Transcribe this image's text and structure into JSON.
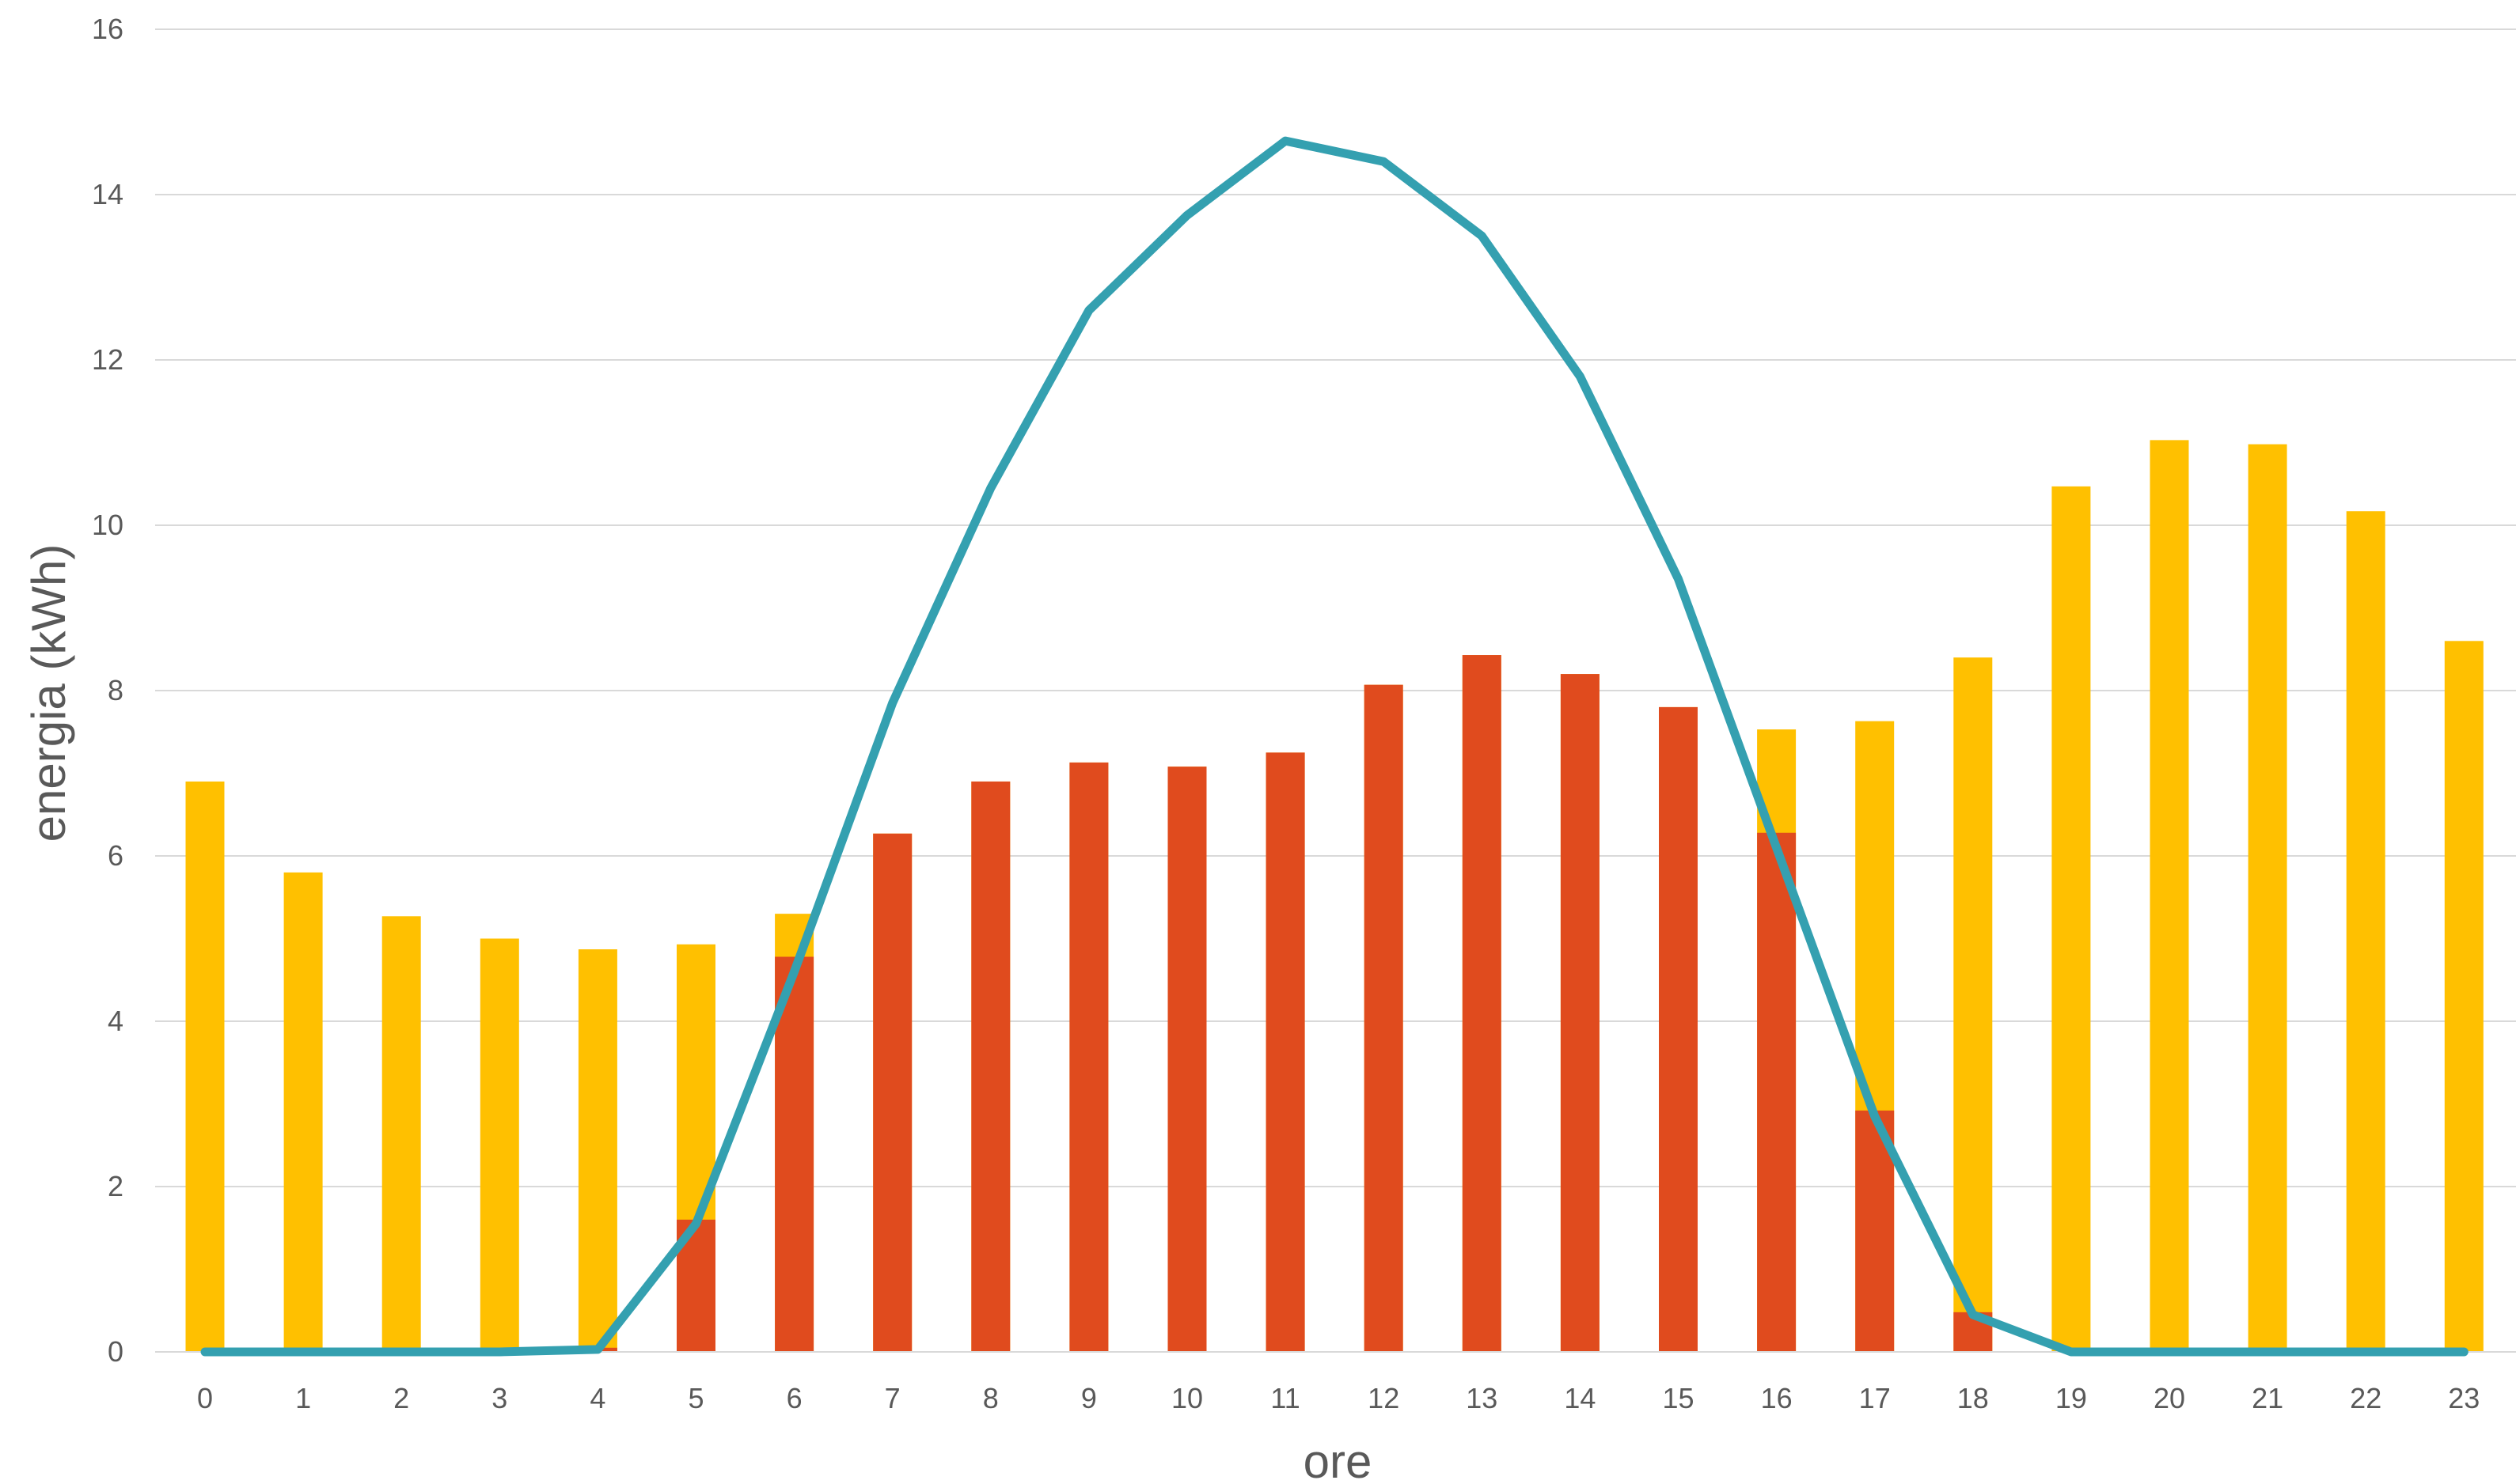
{
  "chart_data": {
    "type": "bar",
    "xlabel": "ore",
    "ylabel": "energia (kWh)",
    "ylim": [
      0,
      16
    ],
    "yticks": [
      0,
      2,
      4,
      6,
      8,
      10,
      12,
      14,
      16
    ],
    "grid": true,
    "legend": "none",
    "categories": [
      "0",
      "1",
      "2",
      "3",
      "4",
      "5",
      "6",
      "7",
      "8",
      "9",
      "10",
      "11",
      "12",
      "13",
      "14",
      "15",
      "16",
      "17",
      "18",
      "19",
      "20",
      "21",
      "22",
      "23"
    ],
    "series": [
      {
        "kind": "bar-total",
        "color": "#FFC000",
        "values": [
          6.9,
          5.8,
          5.27,
          5.0,
          4.87,
          4.93,
          5.3,
          6.27,
          6.9,
          7.13,
          7.08,
          7.25,
          8.07,
          8.43,
          8.2,
          7.8,
          7.53,
          7.63,
          8.4,
          10.47,
          11.03,
          10.98,
          10.17,
          8.6
        ]
      },
      {
        "kind": "bar-overlay",
        "color": "#E04B1E",
        "values": [
          0,
          0,
          0,
          0,
          0.05,
          1.6,
          4.78,
          6.27,
          6.9,
          7.13,
          7.08,
          7.25,
          8.07,
          8.43,
          8.2,
          7.8,
          6.28,
          2.92,
          0.48,
          0,
          0,
          0,
          0,
          0
        ]
      },
      {
        "kind": "line",
        "color": "#34A0B0",
        "values": [
          0,
          0,
          0,
          0,
          0.03,
          1.55,
          4.6,
          7.85,
          10.45,
          12.6,
          13.75,
          14.65,
          14.4,
          13.5,
          11.8,
          9.35,
          6.1,
          2.85,
          0.45,
          0,
          0,
          0,
          0,
          0
        ]
      }
    ]
  }
}
